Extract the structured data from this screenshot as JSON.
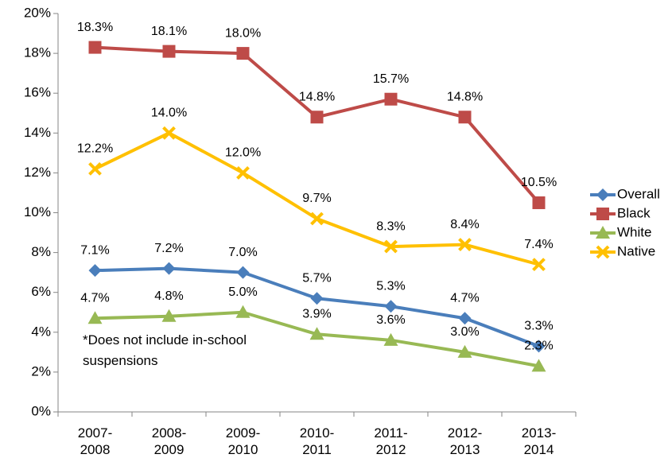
{
  "chart_data": {
    "type": "line",
    "categories": [
      "2007-2008",
      "2008-2009",
      "2009-2010",
      "2010-2011",
      "2011-2012",
      "2012-2013",
      "2013-2014"
    ],
    "series": [
      {
        "name": "Overall",
        "color": "#4a7ebb",
        "marker": "diamond",
        "values": [
          7.1,
          7.2,
          7.0,
          5.7,
          5.3,
          4.7,
          3.3
        ],
        "value_labels": [
          "7.1%",
          "7.2%",
          "7.0%",
          "5.7%",
          "5.3%",
          "4.7%",
          "3.3%"
        ]
      },
      {
        "name": "Black",
        "color": "#be4b48",
        "marker": "square",
        "values": [
          18.3,
          18.1,
          18.0,
          14.8,
          15.7,
          14.8,
          10.5
        ],
        "value_labels": [
          "18.3%",
          "18.1%",
          "18.0%",
          "14.8%",
          "15.7%",
          "14.8%",
          "10.5%"
        ]
      },
      {
        "name": "White",
        "color": "#98b954",
        "marker": "triangle",
        "values": [
          4.7,
          4.8,
          5.0,
          3.9,
          3.6,
          3.0,
          2.3
        ],
        "value_labels": [
          "4.7%",
          "4.8%",
          "5.0%",
          "3.9%",
          "3.6%",
          "3.0%",
          "2.3%"
        ]
      },
      {
        "name": "Native",
        "color": "#ffc000",
        "marker": "x",
        "values": [
          12.2,
          14.0,
          12.0,
          9.7,
          8.3,
          8.4,
          7.4
        ],
        "value_labels": [
          "12.2%",
          "14.0%",
          "12.0%",
          "9.7%",
          "8.3%",
          "8.4%",
          "7.4%"
        ]
      }
    ],
    "ylim": [
      0,
      20
    ],
    "yticks": [
      {
        "value": 0,
        "label": "0%"
      },
      {
        "value": 2,
        "label": "2%"
      },
      {
        "value": 4,
        "label": "4%"
      },
      {
        "value": 6,
        "label": "6%"
      },
      {
        "value": 8,
        "label": "8%"
      },
      {
        "value": 10,
        "label": "10%"
      },
      {
        "value": 12,
        "label": "12%"
      },
      {
        "value": 14,
        "label": "14%"
      },
      {
        "value": 16,
        "label": "16%"
      },
      {
        "value": 18,
        "label": "18%"
      },
      {
        "value": 20,
        "label": "20%"
      }
    ],
    "annotation": "*Does not include in-school suspensions",
    "legend": "right"
  }
}
